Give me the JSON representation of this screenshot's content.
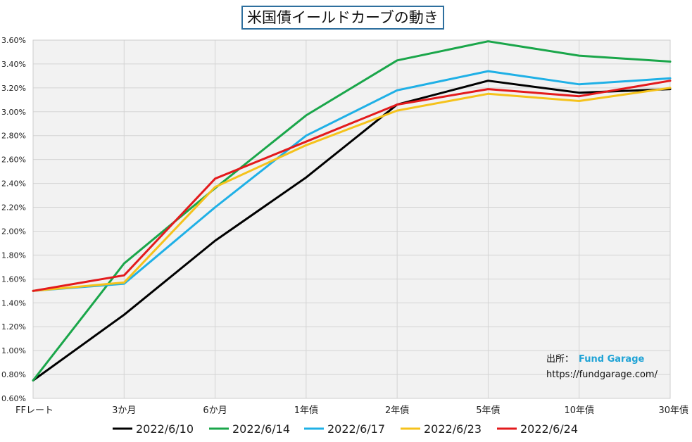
{
  "chart_data": {
    "type": "line",
    "title": "米国債イールドカーブの動き",
    "categories": [
      "FFレート",
      "3か月",
      "6か月",
      "1年債",
      "2年債",
      "5年債",
      "10年債",
      "30年債"
    ],
    "ylim": [
      0.006,
      0.036
    ],
    "ytick_step": 0.002,
    "ytick_labels": [
      "0.60%",
      "0.80%",
      "1.00%",
      "1.20%",
      "1.40%",
      "1.60%",
      "1.80%",
      "2.00%",
      "2.20%",
      "2.40%",
      "2.60%",
      "2.80%",
      "3.00%",
      "3.20%",
      "3.40%",
      "3.60%"
    ],
    "grid": true,
    "legend_position": "bottom",
    "series": [
      {
        "name": "2022/6/10",
        "color": "#000000",
        "values": [
          0.0075,
          0.013,
          0.0192,
          0.0245,
          0.0306,
          0.0326,
          0.0316,
          0.0319
        ]
      },
      {
        "name": "2022/6/14",
        "color": "#1aa64a",
        "values": [
          0.0075,
          0.0173,
          0.0236,
          0.0297,
          0.0343,
          0.0359,
          0.0347,
          0.0342
        ]
      },
      {
        "name": "2022/6/17",
        "color": "#1fb0e6",
        "values": [
          0.015,
          0.0156,
          0.022,
          0.028,
          0.0318,
          0.0334,
          0.0323,
          0.0328
        ]
      },
      {
        "name": "2022/6/23",
        "color": "#f5c21b",
        "values": [
          0.015,
          0.0157,
          0.0237,
          0.0272,
          0.0301,
          0.0315,
          0.0309,
          0.032
        ]
      },
      {
        "name": "2022/6/24",
        "color": "#e31a1c",
        "values": [
          0.015,
          0.0163,
          0.0244,
          0.0275,
          0.0306,
          0.0319,
          0.0313,
          0.0326
        ]
      }
    ],
    "annotation": {
      "source_label": "出所：",
      "source_name": "Fund Garage",
      "url": "https://fundgarage.com/",
      "source_name_color": "#1fa3d6"
    }
  }
}
